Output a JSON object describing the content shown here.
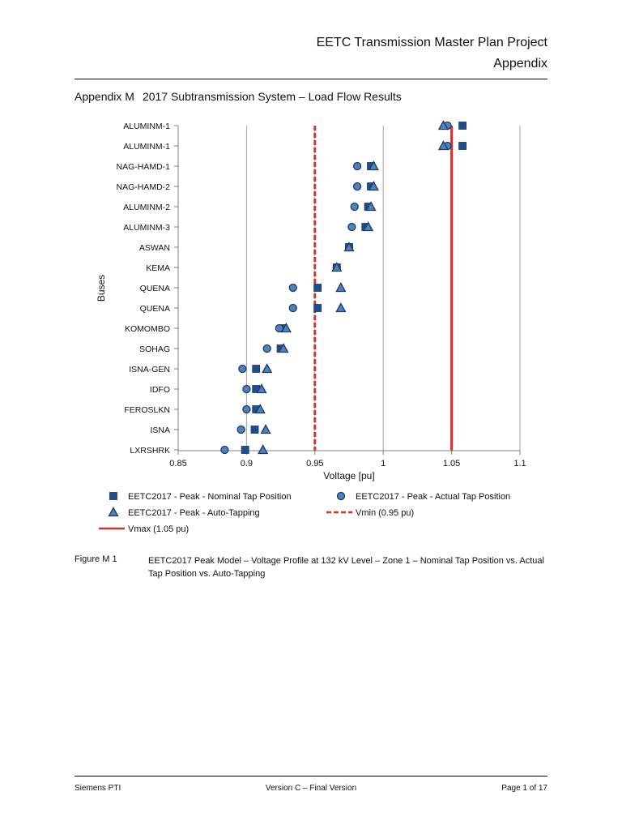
{
  "header": {
    "title": "EETC Transmission Master Plan Project",
    "subtitle": "Appendix"
  },
  "section": {
    "label": "Appendix M",
    "title": "2017 Subtransmission System – Load Flow Results"
  },
  "chart_data": {
    "type": "scatter",
    "orientation": "horizontal",
    "title": "",
    "xlabel": "Voltage [pu]",
    "ylabel": "Buses",
    "xlim": [
      0.85,
      1.1
    ],
    "xticks": [
      "0.85",
      "0.9",
      "0.95",
      "1",
      "1.05",
      "1.1"
    ],
    "categories": [
      "ALUMINM-1",
      "ALUMINM-1",
      "NAG-HAMD-1",
      "NAG-HAMD-2",
      "ALUMINM-2",
      "ALUMINM-3",
      "ASWAN",
      "KEMA",
      "QUENA",
      "QUENA",
      "KOMOMBO",
      "SOHAG",
      "ISNA-GEN",
      "IDFO",
      "FEROSLKN",
      "ISNA",
      "LXRSHRK"
    ],
    "series": [
      {
        "name": "EETC2017 - Peak - Nominal Tap Position",
        "marker": "square",
        "color": "#1f4e8c",
        "values": [
          1.058,
          1.058,
          0.991,
          0.991,
          0.989,
          0.987,
          0.975,
          0.966,
          0.952,
          0.952,
          0.927,
          0.925,
          0.907,
          0.907,
          0.907,
          0.906,
          0.899
        ]
      },
      {
        "name": "EETC2017 - Peak - Actual Tap Position",
        "marker": "circle",
        "color": "#4f81bd",
        "values": [
          1.047,
          1.047,
          0.981,
          0.981,
          0.979,
          0.977,
          0.975,
          0.966,
          0.934,
          0.934,
          0.924,
          0.915,
          0.897,
          0.9,
          0.9,
          0.896,
          0.884
        ]
      },
      {
        "name": "EETC2017 - Peak - Auto-Tapping",
        "marker": "triangle",
        "color": "#4f81bd",
        "values": [
          1.044,
          1.044,
          0.993,
          0.993,
          0.991,
          0.989,
          0.975,
          0.966,
          0.969,
          0.969,
          0.929,
          0.927,
          0.915,
          0.911,
          0.91,
          0.914,
          0.912
        ]
      }
    ],
    "reference_lines": [
      {
        "name": "Vmin (0.95 pu)",
        "value": 0.95,
        "style": "dashed",
        "color": "#d9312b"
      },
      {
        "name": "Vmax (1.05 pu)",
        "value": 1.05,
        "style": "solid",
        "color": "#d9312b"
      }
    ],
    "legend_position": "bottom"
  },
  "figure": {
    "label": "Figure M 1",
    "caption": "EETC2017 Peak Model – Voltage Profile at 132 kV Level – Zone 1 – Nominal Tap Position vs. Actual Tap Position vs. Auto-Tapping"
  },
  "footer": {
    "left": "Siemens PTI",
    "center": "Version C – Final Version",
    "right": "Page 1 of 17"
  }
}
